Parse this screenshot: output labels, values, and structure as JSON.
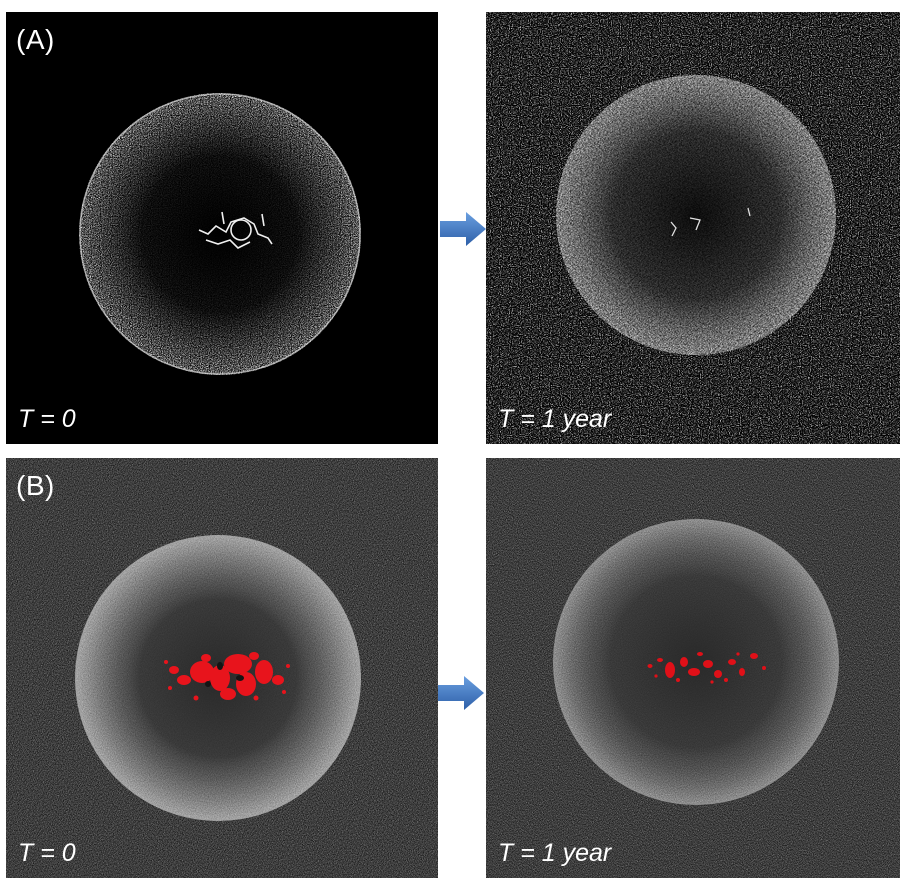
{
  "figure": {
    "row_a": {
      "label": "(A)",
      "left_time": "T = 0",
      "right_time": "T = 1 year"
    },
    "row_b": {
      "label": "(B)",
      "left_time": "T = 0",
      "right_time": "T = 1 year"
    }
  },
  "colors": {
    "background_a": "#000000",
    "background_b": "#141414",
    "sphere_speckle": "#e8e8e8",
    "core_highlight_b": "#e8141c",
    "arrow_fill": "#3d78c6"
  },
  "icons": {
    "arrow": "arrow-right-icon"
  }
}
